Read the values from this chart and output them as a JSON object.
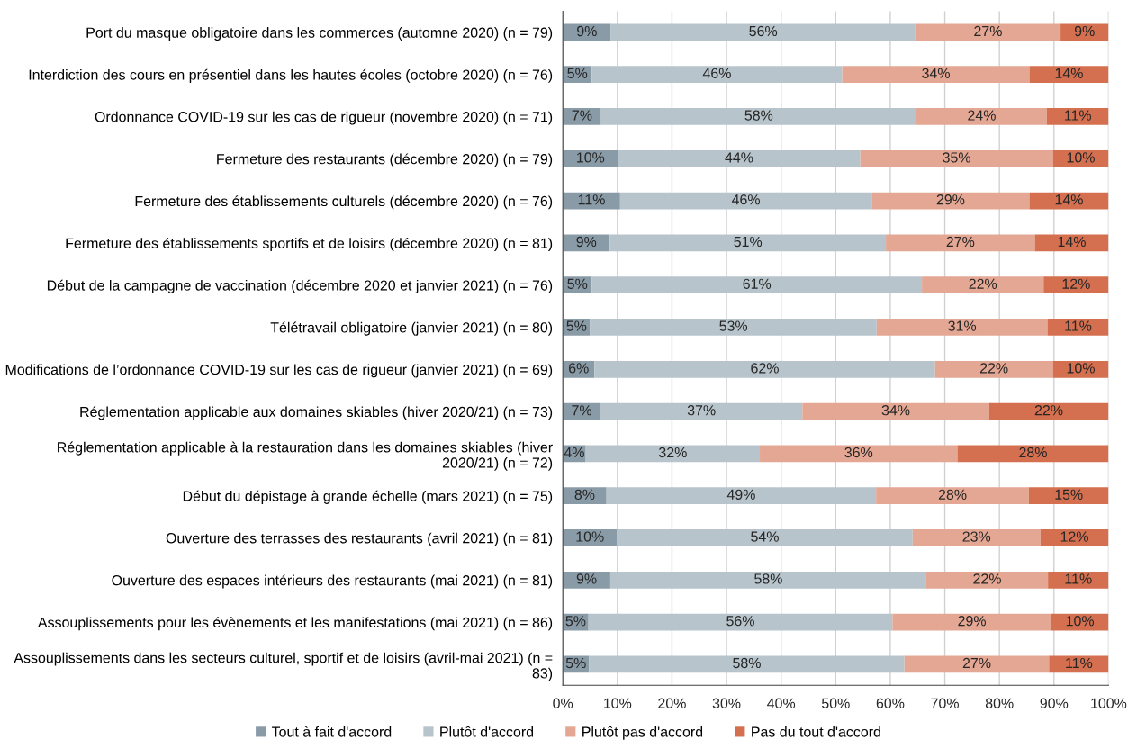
{
  "chart_data": {
    "type": "bar",
    "orientation": "horizontal",
    "stacked": true,
    "categories": [
      "Port du masque obligatoire dans les commerces (automne 2020) (n = 79)",
      "Interdiction des cours en présentiel dans les hautes écoles (octobre 2020) (n = 76)",
      "Ordonnance COVID-19 sur les cas de rigueur (novembre 2020) (n = 71)",
      "Fermeture des restaurants (décembre 2020) (n = 79)",
      "Fermeture des établissements culturels (décembre 2020) (n = 76)",
      "Fermeture des établissements sportifs et de loisirs (décembre 2020) (n = 81)",
      "Début de la campagne de vaccination (décembre 2020 et janvier 2021) (n = 76)",
      "Télétravail obligatoire (janvier 2021) (n = 80)",
      "Modifications de l’ordonnance COVID-19 sur les cas de rigueur (janvier 2021) (n = 69)",
      "Réglementation applicable aux domaines skiables (hiver 2020/21) (n = 73)",
      "Réglementation applicable à la restauration dans les domaines skiables (hiver\n2020/21) (n = 72)",
      "Début du dépistage à grande échelle (mars 2021) (n = 75)",
      "Ouverture des terrasses des restaurants (avril 2021) (n = 81)",
      "Ouverture des espaces intérieurs des restaurants (mai 2021) (n = 81)",
      "Assouplissements pour les évènements et les manifestations (mai 2021) (n = 86)",
      "Assouplissements dans les secteurs culturel, sportif et de loisirs (avril-mai 2021) (n =\n83)"
    ],
    "series": [
      {
        "name": "Tout à fait d'accord",
        "color": "#8a9ba8",
        "values": [
          8.8,
          5.3,
          7.0,
          10.1,
          10.5,
          8.6,
          5.3,
          5.0,
          5.8,
          6.9,
          4.2,
          8.0,
          9.9,
          8.7,
          4.7,
          4.8
        ],
        "value_labels": [
          "9%",
          "5%",
          "7%",
          "10%",
          "11%",
          "9%",
          "5%",
          "5%",
          "6%",
          "7%",
          "4%",
          "8%",
          "10%",
          "9%",
          "5%",
          "5%"
        ]
      },
      {
        "name": "Plutôt d'accord",
        "color": "#b8c4cb",
        "values": [
          55.8,
          45.9,
          57.8,
          44.4,
          46.1,
          50.6,
          60.5,
          52.5,
          62.4,
          37.0,
          31.9,
          49.4,
          54.2,
          57.9,
          55.7,
          57.8
        ],
        "value_labels": [
          "56%",
          "46%",
          "58%",
          "44%",
          "46%",
          "51%",
          "61%",
          "53%",
          "62%",
          "37%",
          "32%",
          "49%",
          "54%",
          "58%",
          "56%",
          "58%"
        ]
      },
      {
        "name": "Plutôt pas d'accord",
        "color": "#e4a793",
        "values": [
          26.6,
          34.3,
          23.9,
          35.3,
          28.9,
          27.3,
          22.3,
          31.3,
          21.6,
          34.2,
          36.2,
          28.0,
          23.4,
          22.3,
          29.1,
          26.5
        ],
        "value_labels": [
          "27%",
          "34%",
          "24%",
          "35%",
          "29%",
          "27%",
          "22%",
          "31%",
          "22%",
          "34%",
          "36%",
          "28%",
          "23%",
          "22%",
          "29%",
          "27%"
        ]
      },
      {
        "name": "Pas du tout d'accord",
        "color": "#d4704f",
        "values": [
          8.8,
          14.5,
          11.3,
          10.2,
          14.5,
          13.5,
          11.9,
          11.2,
          10.2,
          21.9,
          27.7,
          14.6,
          12.5,
          11.1,
          10.5,
          10.9
        ],
        "value_labels": [
          "9%",
          "14%",
          "11%",
          "10%",
          "14%",
          "14%",
          "12%",
          "11%",
          "10%",
          "22%",
          "28%",
          "15%",
          "12%",
          "11%",
          "10%",
          "11%"
        ]
      }
    ],
    "xlim": [
      0,
      100
    ],
    "xticks": [
      {
        "value": 0,
        "label": "0%"
      },
      {
        "value": 10,
        "label": "10%"
      },
      {
        "value": 20,
        "label": "20%"
      },
      {
        "value": 30,
        "label": "30%"
      },
      {
        "value": 40,
        "label": "40%"
      },
      {
        "value": 50,
        "label": "50%"
      },
      {
        "value": 60,
        "label": "60%"
      },
      {
        "value": 70,
        "label": "70%"
      },
      {
        "value": 80,
        "label": "80%"
      },
      {
        "value": 90,
        "label": "90%"
      },
      {
        "value": 100,
        "label": "100%"
      }
    ],
    "grid": "x",
    "legend": "bottom"
  }
}
